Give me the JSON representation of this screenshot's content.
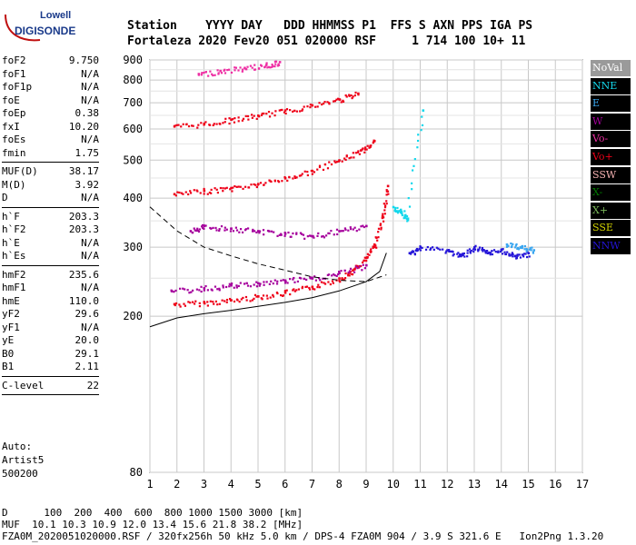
{
  "logo": {
    "line1": "Lowell",
    "line2": "DIGISONDE"
  },
  "header": {
    "labels_row": "Station    YYYY DAY   DDD HHMMSS P1  FFS S AXN PPS IGA PS",
    "values_row": "Fortaleza 2020 Fev20 051 020000 RSF     1 714 100 10+ 11"
  },
  "params": {
    "group1": [
      {
        "name": "foF2",
        "value": "9.750"
      },
      {
        "name": "foF1",
        "value": "N/A"
      },
      {
        "name": "foF1p",
        "value": "N/A"
      },
      {
        "name": "foE",
        "value": "N/A"
      },
      {
        "name": "foEp",
        "value": "0.38"
      },
      {
        "name": "fxI",
        "value": "10.20"
      },
      {
        "name": "foEs",
        "value": "N/A"
      },
      {
        "name": "fmin",
        "value": "1.75"
      }
    ],
    "group2": [
      {
        "name": "MUF(D)",
        "value": "38.17"
      },
      {
        "name": "M(D)",
        "value": "3.92"
      },
      {
        "name": "D",
        "value": "N/A"
      }
    ],
    "group3": [
      {
        "name": "h`F",
        "value": "203.3"
      },
      {
        "name": "h`F2",
        "value": "203.3"
      },
      {
        "name": "h`E",
        "value": "N/A"
      },
      {
        "name": "h`Es",
        "value": "N/A"
      }
    ],
    "group4": [
      {
        "name": "hmF2",
        "value": "235.6"
      },
      {
        "name": "hmF1",
        "value": "N/A"
      },
      {
        "name": "hmE",
        "value": "110.0"
      },
      {
        "name": "yF2",
        "value": "29.6"
      },
      {
        "name": "yF1",
        "value": "N/A"
      },
      {
        "name": "yE",
        "value": "20.0"
      },
      {
        "name": "B0",
        "value": "29.1"
      },
      {
        "name": "B1",
        "value": "2.11"
      }
    ],
    "group5": [
      {
        "name": "C-level",
        "value": "22"
      }
    ]
  },
  "auto": {
    "line1": "Auto:",
    "line2": "Artist5",
    "line3": "500200"
  },
  "legend": [
    {
      "label": "NoVal",
      "color": "#9a9a9a"
    },
    {
      "label": "NNE",
      "color": "#14d8ec"
    },
    {
      "label": "E",
      "color": "#3aa6f0"
    },
    {
      "label": "W",
      "color": "#a5009c"
    },
    {
      "label": "Vo-",
      "color": "#ee2ea3"
    },
    {
      "label": "Vo+",
      "color": "#ee0018"
    },
    {
      "label": "SSW",
      "color": "#f4b1b1"
    },
    {
      "label": "X-",
      "color": "#007a00"
    },
    {
      "label": "X+",
      "color": "#7ab85a"
    },
    {
      "label": "SSE",
      "color": "#d2d200"
    },
    {
      "label": "NNW",
      "color": "#2414d8"
    }
  ],
  "chart_data": {
    "type": "scatter",
    "xlim": [
      1,
      17
    ],
    "ylim": [
      80,
      900
    ],
    "x_scale": "linear",
    "y_scale": "log",
    "xticks": [
      "1",
      "2",
      "3",
      "4",
      "5",
      "6",
      "7",
      "8",
      "9",
      "10",
      "11",
      "12",
      "13",
      "14",
      "15",
      "16",
      "17"
    ],
    "yticks": [
      "80",
      "200",
      "300",
      "400",
      "500",
      "600",
      "700",
      "800",
      "900"
    ],
    "grid": true,
    "traces": [
      {
        "label": "F-trace",
        "color": "#ee0018",
        "x": [
          1.9,
          3,
          4,
          5,
          6,
          7,
          8,
          8.5,
          9,
          9.3,
          9.6,
          9.8
        ],
        "y": [
          215,
          217,
          220,
          225,
          230,
          238,
          250,
          262,
          282,
          305,
          360,
          430
        ]
      },
      {
        "label": "F-trace 2nd hop",
        "color": "#ee0018",
        "x": [
          1.9,
          3,
          4,
          5,
          6,
          7,
          8,
          8.8,
          9.3
        ],
        "y": [
          410,
          418,
          425,
          435,
          450,
          470,
          500,
          530,
          560
        ]
      },
      {
        "label": "F-trace 3rd hop",
        "color": "#ee0018",
        "x": [
          1.9,
          3,
          4,
          5,
          6,
          7,
          8,
          8.7
        ],
        "y": [
          610,
          620,
          635,
          650,
          670,
          690,
          715,
          740
        ]
      },
      {
        "label": "F-trace 4th hop",
        "color": "#ee2ea3",
        "x": [
          2.8,
          3.6,
          4.5,
          5.3,
          5.8
        ],
        "y": [
          830,
          845,
          860,
          875,
          890
        ]
      },
      {
        "label": "W band",
        "color": "#a5009c",
        "x": [
          1.8,
          3,
          4,
          5,
          6,
          7,
          8,
          9
        ],
        "y": [
          232,
          236,
          240,
          243,
          247,
          250,
          258,
          270
        ]
      },
      {
        "label": "W spread",
        "color": "#a5009c",
        "x": [
          2.5,
          3,
          4,
          5,
          6,
          7,
          8,
          9
        ],
        "y": [
          330,
          340,
          335,
          330,
          325,
          320,
          330,
          340
        ]
      },
      {
        "label": "NNW",
        "color": "#2414d8",
        "x": [
          10.6,
          11,
          12,
          12.5,
          13,
          13.5,
          14,
          14.5,
          15
        ],
        "y": [
          290,
          300,
          295,
          285,
          300,
          290,
          295,
          285,
          290
        ]
      },
      {
        "label": "E",
        "color": "#3aa6f0",
        "x": [
          14.2,
          14.7,
          15.2
        ],
        "y": [
          305,
          300,
          295
        ]
      },
      {
        "label": "NNE",
        "color": "#14d8ec",
        "x": [
          10,
          10.3,
          10.5,
          11.1
        ],
        "y": [
          380,
          370,
          355,
          670
        ]
      }
    ],
    "profile_solid": {
      "x": [
        1,
        2,
        3,
        4,
        5,
        6,
        7,
        8,
        9,
        9.5,
        9.75
      ],
      "y": [
        188,
        198,
        203,
        207,
        212,
        217,
        223,
        232,
        245,
        260,
        290
      ]
    },
    "profile_dashed": {
      "x": [
        1,
        2,
        3,
        4,
        5,
        6,
        7,
        8,
        9,
        9.75
      ],
      "y": [
        380,
        330,
        300,
        285,
        272,
        262,
        252,
        247,
        245,
        255
      ]
    }
  },
  "footer": {
    "dist_row": "D      100  200  400  600  800 1000 1500 3000 [km]",
    "muf_row": "MUF  10.1 10.3 10.9 12.0 13.4 15.6 21.8 38.2 [MHz]",
    "file_row": "FZA0M_2020051020000.RSF / 320fx256h 50 kHz 5.0 km / DPS-4 FZA0M 904 / 3.9 S 321.6 E   Ion2Png 1.3.20"
  }
}
